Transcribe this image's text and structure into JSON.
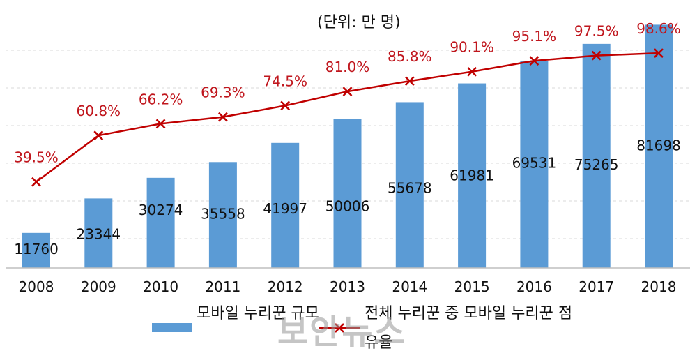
{
  "unit_label": "(단위: 만 명)",
  "watermark": "보안뉴스",
  "colors": {
    "bar": "#5b9bd5",
    "line": "#c00000",
    "label_red": "#c0161d",
    "grid": "#d9d9d9"
  },
  "chart_data": {
    "type": "bar",
    "categories": [
      "2008",
      "2009",
      "2010",
      "2011",
      "2012",
      "2013",
      "2014",
      "2015",
      "2016",
      "2017",
      "2018"
    ],
    "series": [
      {
        "name": "모바일 누리꾼 규모",
        "type": "bar",
        "values": [
          11760,
          23344,
          30274,
          35558,
          41997,
          50006,
          55678,
          61981,
          69531,
          75265,
          81698
        ],
        "labels": [
          "11760",
          "23344",
          "30274",
          "35558",
          "41997",
          "50006",
          "55678",
          "61981",
          "69531",
          "75265",
          "81698"
        ]
      },
      {
        "name": "전체 누리꾼 중 모바일 누리꾼 점유율",
        "type": "line",
        "values": [
          39.5,
          60.8,
          66.2,
          69.3,
          74.5,
          81.0,
          85.8,
          90.1,
          95.1,
          97.5,
          98.6
        ],
        "labels": [
          "39.5%",
          "60.8%",
          "66.2%",
          "69.3%",
          "74.5%",
          "81.0%",
          "85.8%",
          "90.1%",
          "95.1%",
          "97.5%",
          "98.6%"
        ]
      }
    ],
    "ylim": [
      0,
      90000
    ],
    "y2lim": [
      0,
      123
    ],
    "grid": true,
    "legend": "bottom"
  }
}
